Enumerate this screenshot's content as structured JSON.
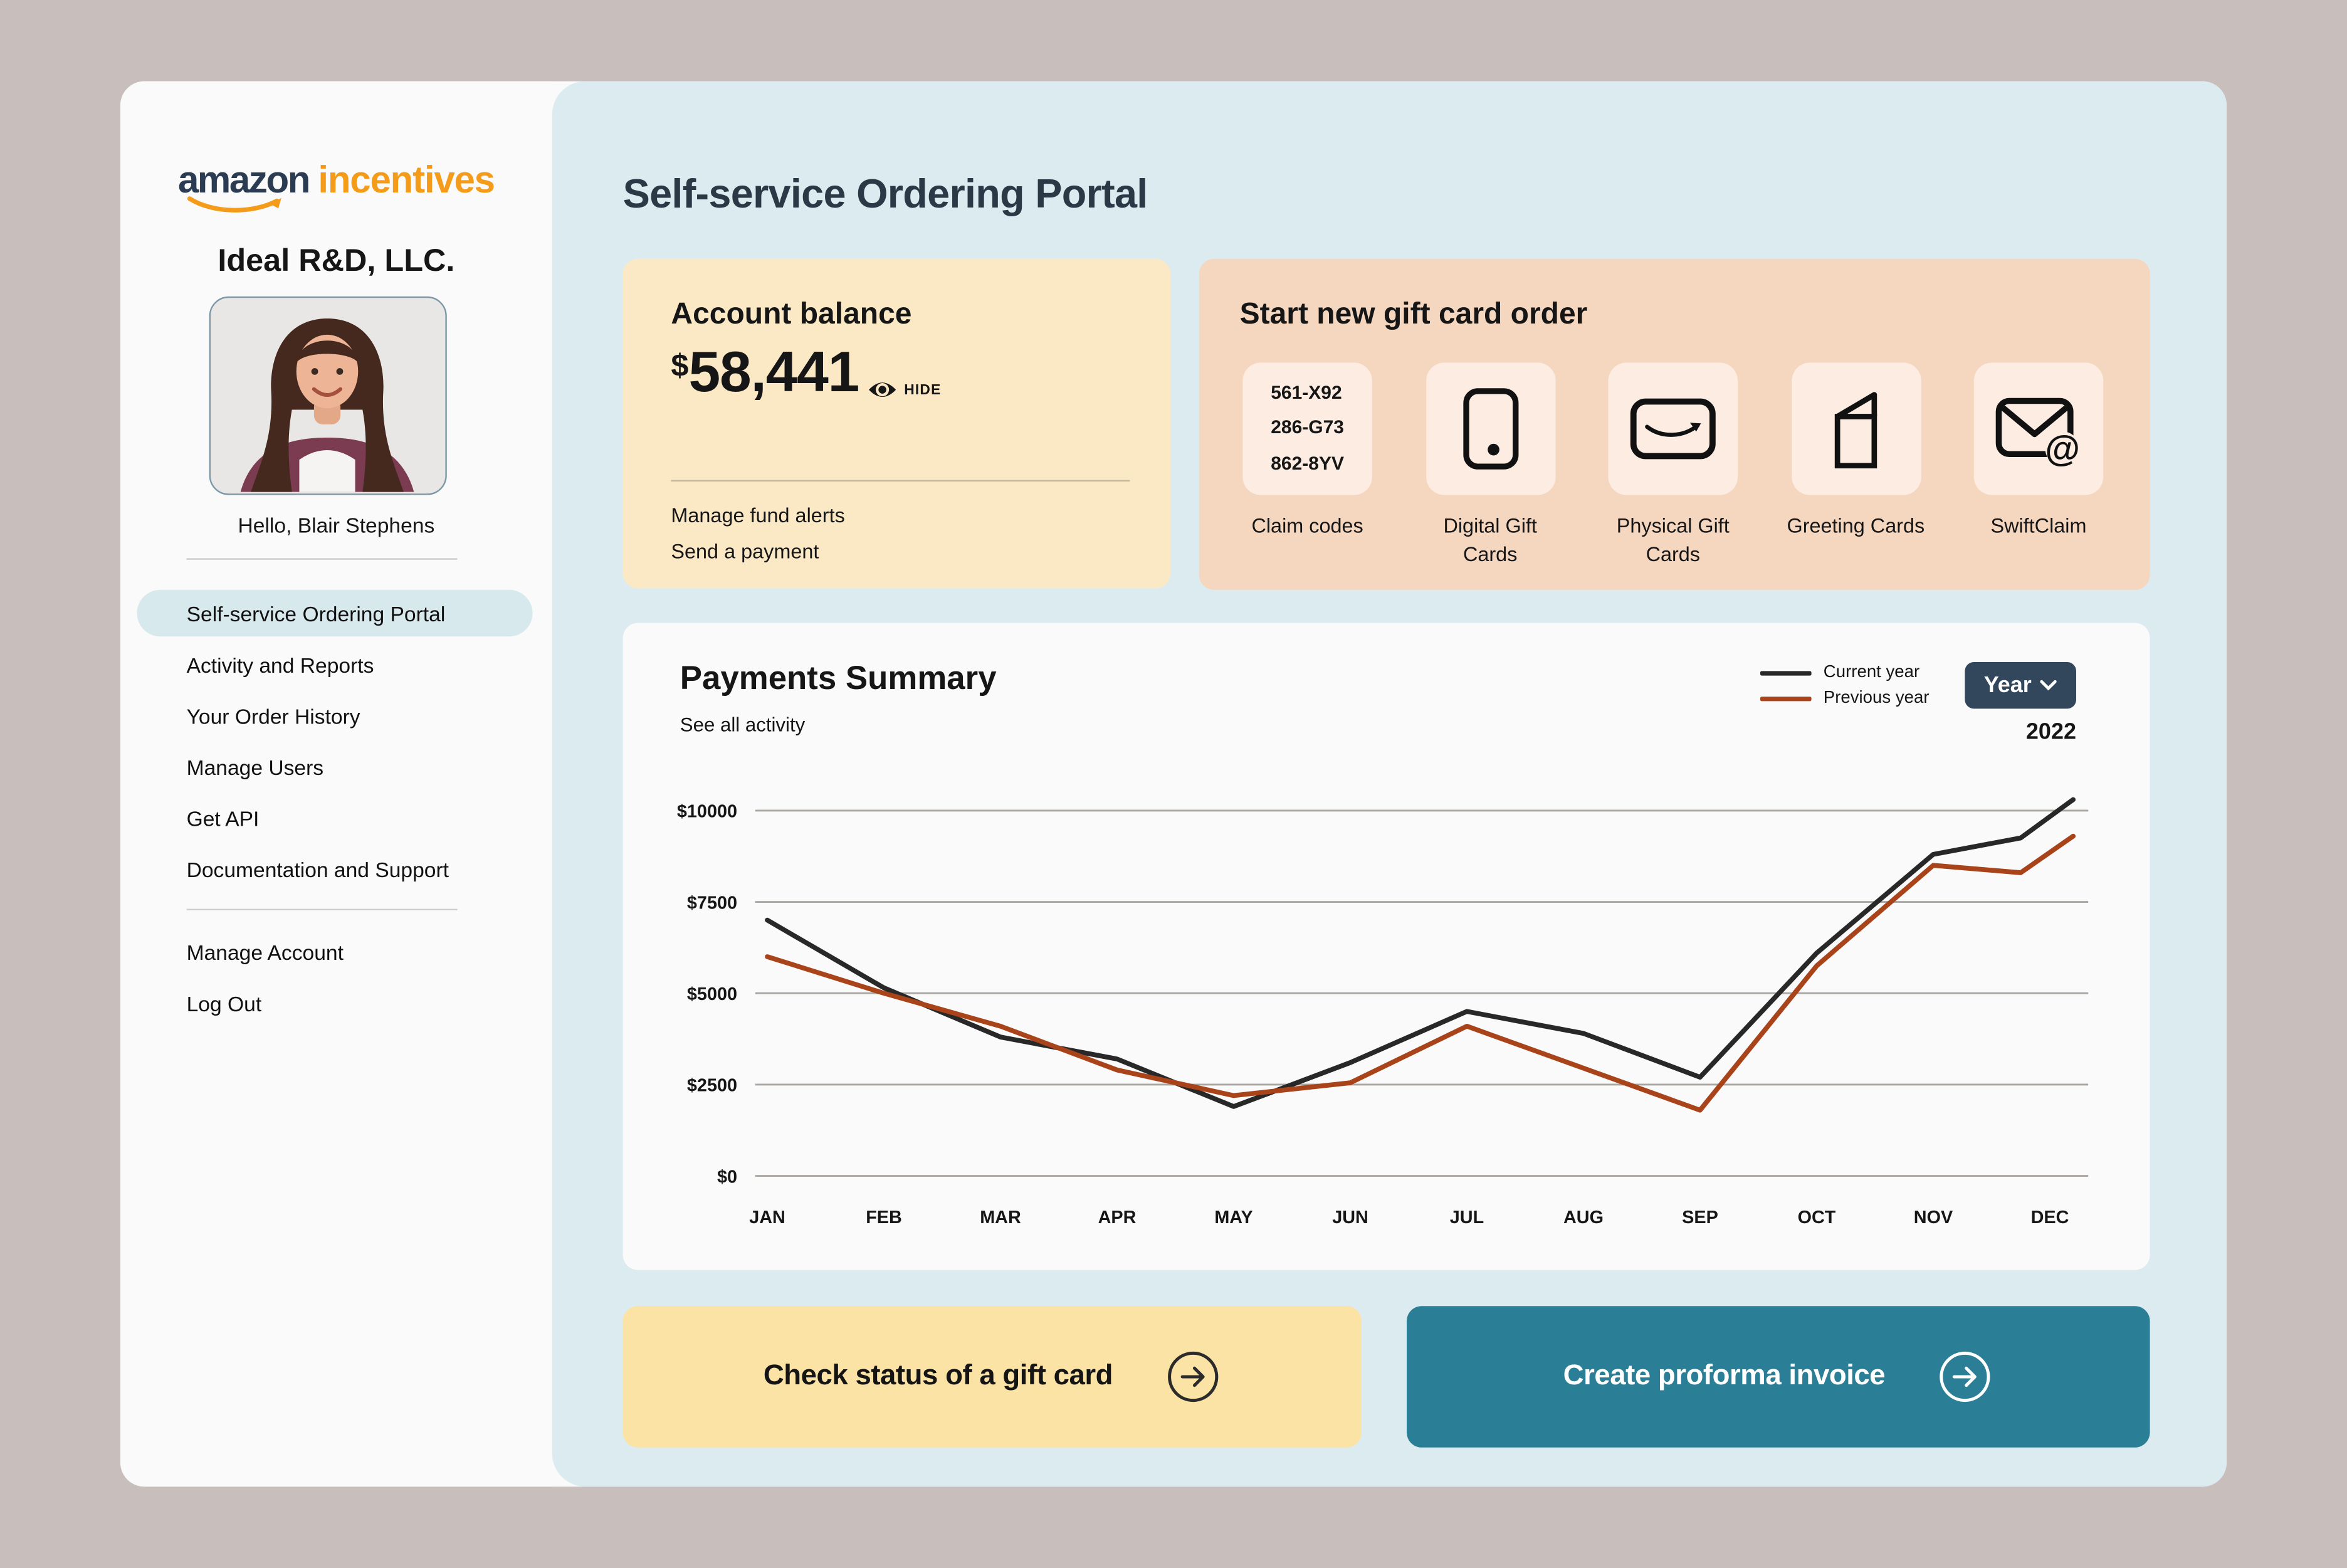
{
  "sidebar": {
    "logo": {
      "brand": "amazon",
      "suffix": "incentives",
      "brand_color": "#2B3B51",
      "accent_color": "#F49C1A"
    },
    "company": "Ideal R&D, LLC.",
    "greeting": "Hello, Blair Stephens",
    "menu": [
      {
        "label": "Self-service Ordering Portal",
        "active": true
      },
      {
        "label": "Activity and Reports",
        "active": false
      },
      {
        "label": "Your Order History",
        "active": false
      },
      {
        "label": "Manage Users",
        "active": false
      },
      {
        "label": "Get API",
        "active": false
      },
      {
        "label": "Documentation and Support",
        "active": false
      }
    ],
    "menu_secondary": [
      {
        "label": "Manage Account"
      },
      {
        "label": "Log Out"
      }
    ]
  },
  "main": {
    "title": "Self-service Ordering Portal",
    "balance_card": {
      "title": "Account balance",
      "currency": "$",
      "amount": "58,441",
      "hide_label": "HIDE",
      "links": {
        "alerts": "Manage fund alerts",
        "payment": "Send a payment"
      },
      "bg_color": "#FBE9C6"
    },
    "gift_order_card": {
      "title": "Start new gift card order",
      "bg_color": "#F5D7C0",
      "tiles": [
        {
          "label": "Claim codes",
          "icon": "claim-codes",
          "codes": [
            "561-X92",
            "286-G73",
            "862-8YV"
          ]
        },
        {
          "label": "Digital Gift Cards",
          "icon": "phone-icon"
        },
        {
          "label": "Physical Gift Cards",
          "icon": "gift-card-smile-icon"
        },
        {
          "label": "Greeting Cards",
          "icon": "greeting-card-icon"
        },
        {
          "label": "SwiftClaim",
          "icon": "envelope-at-icon"
        }
      ]
    },
    "payments_card": {
      "title": "Payments Summary",
      "link": "See all activity",
      "year_button_label": "Year",
      "year_value": "2022"
    },
    "actions": [
      {
        "label": "Check status of a gift card",
        "style": "yellow",
        "bg_color": "#FAE3A5"
      },
      {
        "label": "Create proforma invoice",
        "style": "teal",
        "bg_color": "#2A7E96"
      }
    ]
  },
  "chart_data": {
    "type": "line",
    "title": "Payments Summary",
    "months": [
      "JAN",
      "FEB",
      "MAR",
      "APR",
      "MAY",
      "JUN",
      "JUL",
      "AUG",
      "SEP",
      "OCT",
      "NOV",
      "DEC"
    ],
    "y_ticks": [
      0,
      2500,
      5000,
      7500,
      10000
    ],
    "y_tick_prefix": "$",
    "ylim": [
      0,
      10500
    ],
    "grid": "horizontal",
    "legend_position": "top-right",
    "series": [
      {
        "name": "Current year",
        "color": "#282828",
        "monthly_values": [
          7000,
          5150,
          3800,
          3200,
          1900,
          3100,
          4500,
          3900,
          2700,
          6100,
          8800,
          10300
        ],
        "points": [
          [
            0,
            7000
          ],
          [
            1,
            5150
          ],
          [
            2,
            3800
          ],
          [
            3,
            3200
          ],
          [
            4,
            1900
          ],
          [
            5,
            3100
          ],
          [
            6,
            4500
          ],
          [
            7,
            3900
          ],
          [
            8,
            2700
          ],
          [
            9,
            6100
          ],
          [
            10,
            8800
          ],
          [
            10.75,
            9250
          ],
          [
            11.2,
            10300
          ]
        ]
      },
      {
        "name": "Previous year",
        "color": "#A8431A",
        "monthly_values": [
          6000,
          5000,
          4100,
          2900,
          2200,
          2550,
          4100,
          2950,
          1800,
          5750,
          8500,
          9300
        ],
        "points": [
          [
            0,
            6000
          ],
          [
            1,
            5000
          ],
          [
            2,
            4100
          ],
          [
            3,
            2900
          ],
          [
            4,
            2200
          ],
          [
            5,
            2550
          ],
          [
            6,
            4100
          ],
          [
            7,
            2950
          ],
          [
            8,
            1800
          ],
          [
            9,
            5750
          ],
          [
            10,
            8500
          ],
          [
            10.75,
            8300
          ],
          [
            11.2,
            9300
          ]
        ]
      }
    ],
    "selected_period": "Year",
    "selected_year": "2022"
  }
}
